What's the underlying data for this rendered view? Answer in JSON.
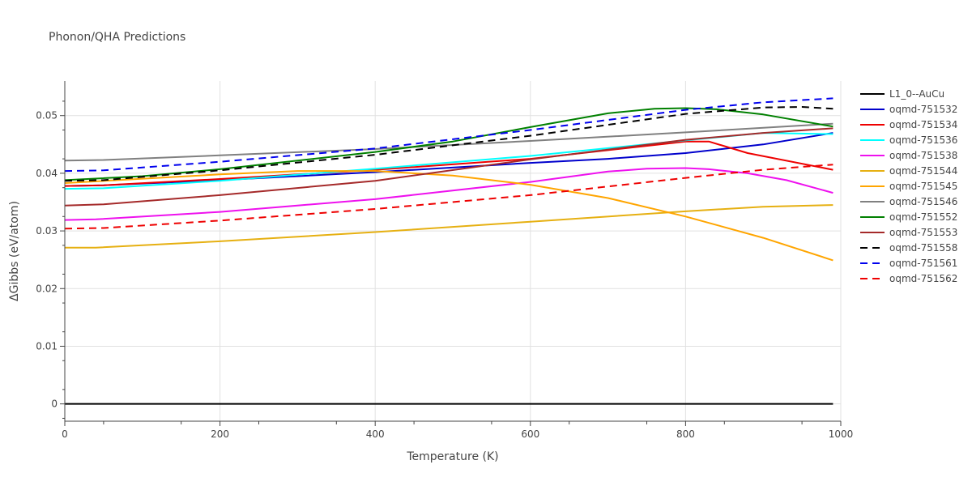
{
  "chart_data": {
    "type": "line",
    "title": "Phonon/QHA Predictions",
    "xlabel": "Temperature (K)",
    "ylabel": "ΔGibbs (eV/atom)",
    "xlim": [
      0,
      1000
    ],
    "ylim": [
      -0.003,
      0.056
    ],
    "xticks": [
      0,
      200,
      400,
      600,
      800,
      1000
    ],
    "yticks": [
      0,
      0.01,
      0.02,
      0.03,
      0.04,
      0.05
    ],
    "ytick_labels": [
      "0",
      "0.01",
      "0.02",
      "0.03",
      "0.04",
      "0.05"
    ],
    "legend_position": "right",
    "series": [
      {
        "name": "L1_0--AuCu",
        "color": "#000000",
        "dash": "solid",
        "x": [
          0,
          990
        ],
        "y": [
          0.0,
          0.0
        ]
      },
      {
        "name": "oqmd-751532",
        "color": "#0000cc",
        "dash": "solid",
        "x": [
          0,
          50,
          200,
          400,
          600,
          700,
          800,
          900,
          990
        ],
        "y": [
          0.0378,
          0.0379,
          0.0388,
          0.0402,
          0.0418,
          0.0425,
          0.0435,
          0.045,
          0.047
        ]
      },
      {
        "name": "oqmd-751534",
        "color": "#ee0000",
        "dash": "solid",
        "x": [
          0,
          50,
          200,
          400,
          600,
          700,
          800,
          830,
          880,
          990
        ],
        "y": [
          0.0378,
          0.0379,
          0.039,
          0.0406,
          0.0425,
          0.044,
          0.0455,
          0.0455,
          0.0435,
          0.0406
        ]
      },
      {
        "name": "oqmd-751536",
        "color": "#00ffff",
        "dash": "solid",
        "x": [
          0,
          50,
          200,
          400,
          600,
          800,
          900,
          990
        ],
        "y": [
          0.0373,
          0.0374,
          0.0387,
          0.0408,
          0.043,
          0.0457,
          0.047,
          0.0468
        ]
      },
      {
        "name": "oqmd-751538",
        "color": "#ee11ee",
        "dash": "solid",
        "x": [
          0,
          40,
          200,
          400,
          600,
          700,
          750,
          800,
          830,
          880,
          930,
          990
        ],
        "y": [
          0.0319,
          0.032,
          0.0333,
          0.0355,
          0.0385,
          0.0403,
          0.0408,
          0.0409,
          0.0407,
          0.04,
          0.0388,
          0.0366
        ]
      },
      {
        "name": "oqmd-751544",
        "color": "#e6b012",
        "dash": "solid",
        "x": [
          0,
          40,
          200,
          400,
          600,
          800,
          900,
          990
        ],
        "y": [
          0.0271,
          0.0271,
          0.0282,
          0.0298,
          0.0316,
          0.0334,
          0.0342,
          0.0345
        ]
      },
      {
        "name": "oqmd-751545",
        "color": "#ffa500",
        "dash": "solid",
        "x": [
          0,
          200,
          300,
          400,
          500,
          600,
          700,
          800,
          900,
          990
        ],
        "y": [
          0.0383,
          0.0398,
          0.0404,
          0.0404,
          0.0396,
          0.038,
          0.0357,
          0.0325,
          0.0288,
          0.0249
        ]
      },
      {
        "name": "oqmd-751546",
        "color": "#808080",
        "dash": "solid",
        "x": [
          0,
          50,
          200,
          400,
          600,
          800,
          990
        ],
        "y": [
          0.0422,
          0.0423,
          0.0431,
          0.0442,
          0.0456,
          0.0471,
          0.0486
        ]
      },
      {
        "name": "oqmd-751552",
        "color": "#008000",
        "dash": "solid",
        "x": [
          0,
          100,
          200,
          400,
          500,
          600,
          700,
          760,
          800,
          840,
          900,
          990
        ],
        "y": [
          0.0388,
          0.0395,
          0.0407,
          0.0437,
          0.0455,
          0.048,
          0.0504,
          0.0512,
          0.0513,
          0.0511,
          0.0502,
          0.0481
        ]
      },
      {
        "name": "oqmd-751553",
        "color": "#a52a2a",
        "dash": "solid",
        "x": [
          0,
          50,
          200,
          400,
          600,
          800,
          900,
          990
        ],
        "y": [
          0.0344,
          0.0346,
          0.0362,
          0.0387,
          0.0424,
          0.0458,
          0.047,
          0.0478
        ]
      },
      {
        "name": "oqmd-751558",
        "color": "#000000",
        "dash": "dash",
        "x": [
          0,
          50,
          200,
          400,
          600,
          800,
          900,
          950,
          990
        ],
        "y": [
          0.0387,
          0.0388,
          0.0405,
          0.0432,
          0.0465,
          0.0503,
          0.0514,
          0.0515,
          0.0512
        ]
      },
      {
        "name": "oqmd-751561",
        "color": "#0000ee",
        "dash": "dash",
        "x": [
          0,
          50,
          200,
          400,
          600,
          800,
          900,
          990
        ],
        "y": [
          0.0404,
          0.0405,
          0.042,
          0.0443,
          0.0475,
          0.051,
          0.0523,
          0.053
        ]
      },
      {
        "name": "oqmd-751562",
        "color": "#ee0000",
        "dash": "dash",
        "x": [
          0,
          50,
          200,
          400,
          600,
          800,
          900,
          990
        ],
        "y": [
          0.0304,
          0.0305,
          0.0318,
          0.0338,
          0.0362,
          0.0392,
          0.0406,
          0.0415
        ]
      }
    ]
  }
}
